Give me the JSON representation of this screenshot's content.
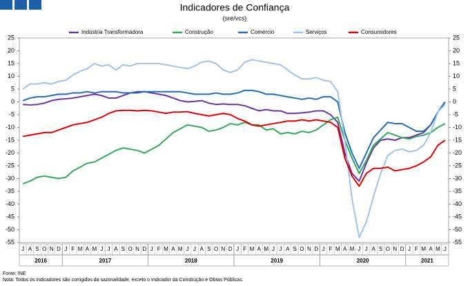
{
  "chart_data": {
    "type": "line",
    "title": "Indicadores de Confiança",
    "subtitle": "(sre/vcs)",
    "categories": [
      "J",
      "A",
      "S",
      "O",
      "N",
      "D",
      "J",
      "F",
      "M",
      "A",
      "M",
      "J",
      "J",
      "A",
      "S",
      "O",
      "N",
      "D",
      "J",
      "F",
      "M",
      "A",
      "M",
      "J",
      "J",
      "A",
      "S",
      "O",
      "N",
      "D",
      "J",
      "F",
      "M",
      "A",
      "M",
      "J",
      "J",
      "A",
      "S",
      "O",
      "N",
      "D",
      "J",
      "F",
      "M",
      "A",
      "M",
      "J",
      "J",
      "A",
      "S",
      "O",
      "N",
      "D",
      "J",
      "F",
      "M",
      "A",
      "M",
      "J"
    ],
    "years": [
      "2016",
      "2017",
      "2018",
      "2019",
      "2020",
      "2021"
    ],
    "series": [
      {
        "name": "Indústria Transformadora",
        "color": "#7030a0",
        "values": [
          -1,
          -1.2,
          -1,
          -0.5,
          0.5,
          1,
          1.2,
          1.5,
          2,
          2.5,
          3,
          2.5,
          1.5,
          1.5,
          2.5,
          3.5,
          4,
          4,
          3.5,
          3,
          2.5,
          1.5,
          0.5,
          0,
          0.2,
          0.5,
          -0.5,
          -1,
          -0.8,
          -1,
          -1,
          -1.5,
          -2.5,
          -3.5,
          -3,
          -3.5,
          -3.5,
          -4.5,
          -4.5,
          -4.3,
          -4,
          -3.5,
          -3.5,
          -5,
          -8,
          -20,
          -28,
          -31,
          -24,
          -18,
          -15,
          -14.5,
          -15,
          -14,
          -14,
          -13,
          -12,
          -9,
          -4,
          0
        ]
      },
      {
        "name": "Construção",
        "color": "#2eaa5a",
        "values": [
          -32,
          -31,
          -29.5,
          -29,
          -29.5,
          -30,
          -29.5,
          -27,
          -25.5,
          -24,
          -23.5,
          -22,
          -20.5,
          -19,
          -18,
          -18.5,
          -19,
          -20,
          -18.5,
          -17,
          -14.5,
          -12,
          -10.5,
          -9,
          -9.5,
          -10,
          -11.5,
          -11,
          -10,
          -8.5,
          -9,
          -8,
          -9,
          -9,
          -11,
          -10.5,
          -12.5,
          -12,
          -12.5,
          -11.5,
          -12,
          -11,
          -9,
          -7,
          -6,
          -15,
          -22,
          -28,
          -23,
          -17,
          -14.5,
          -12,
          -13,
          -14,
          -14.5,
          -13.5,
          -13,
          -12,
          -10,
          -8.5
        ]
      },
      {
        "name": "Comércio",
        "color": "#1f6db5",
        "values": [
          0.5,
          1.5,
          2,
          2,
          2.5,
          3,
          3,
          3.5,
          3.5,
          4,
          3.5,
          4,
          4,
          4,
          3.5,
          3.5,
          3.5,
          4,
          4,
          4,
          4,
          4,
          4,
          3.5,
          3,
          3,
          3,
          3.5,
          3,
          3,
          3.5,
          4.5,
          4.5,
          4,
          3,
          3,
          2.5,
          2,
          1.5,
          1,
          1.5,
          1,
          2,
          2,
          0,
          -12,
          -20,
          -26,
          -20,
          -14,
          -11,
          -8,
          -8.5,
          -8.5,
          -10,
          -11.5,
          -11.5,
          -9,
          -4,
          0
        ]
      },
      {
        "name": "Serviços",
        "color": "#9dc3e6",
        "values": [
          5,
          7,
          7,
          7.5,
          7,
          8,
          8.5,
          10.5,
          12,
          13,
          15,
          14,
          14.5,
          12.5,
          14.5,
          14,
          15,
          15,
          15,
          15,
          14.5,
          14,
          13.5,
          13,
          14,
          15.5,
          16,
          15,
          12.5,
          11.5,
          12.5,
          15.5,
          16.5,
          16,
          15.5,
          15,
          14.5,
          12.5,
          10.5,
          9,
          9,
          9.5,
          8.5,
          8,
          4,
          -15,
          -38,
          -53,
          -47,
          -37,
          -28,
          -21,
          -19,
          -18.5,
          -19.5,
          -19,
          -17,
          -12,
          -4,
          -1
        ]
      },
      {
        "name": "Consumidores",
        "color": "#e00000",
        "values": [
          -13.5,
          -13,
          -12.5,
          -12,
          -12,
          -11,
          -10,
          -9,
          -8.5,
          -8,
          -7,
          -6,
          -4.5,
          -3.5,
          -3.3,
          -3.3,
          -3.5,
          -3.3,
          -3.5,
          -4,
          -4.5,
          -4,
          -4,
          -3.8,
          -4.5,
          -5,
          -5.5,
          -5,
          -4.5,
          -5,
          -6.5,
          -7.5,
          -9,
          -9.5,
          -9,
          -8.5,
          -8,
          -7.5,
          -7.5,
          -7,
          -7.5,
          -7,
          -7.5,
          -8,
          -10,
          -22,
          -29,
          -33,
          -28,
          -26,
          -26,
          -25.5,
          -27,
          -26.5,
          -26,
          -25,
          -23.5,
          -21.5,
          -17,
          -15
        ]
      }
    ],
    "ylim": [
      -55,
      25
    ],
    "yticks": [
      -55,
      -50,
      -45,
      -40,
      -35,
      -30,
      -25,
      -20,
      -15,
      -10,
      -5,
      0,
      5,
      10,
      15,
      20,
      25
    ],
    "source": "Fonte: INE",
    "note": "Nota: Todos os indicadores são corrigidos da sazonalidade, exceto o Indicador da Construção e Obras Públicas."
  }
}
